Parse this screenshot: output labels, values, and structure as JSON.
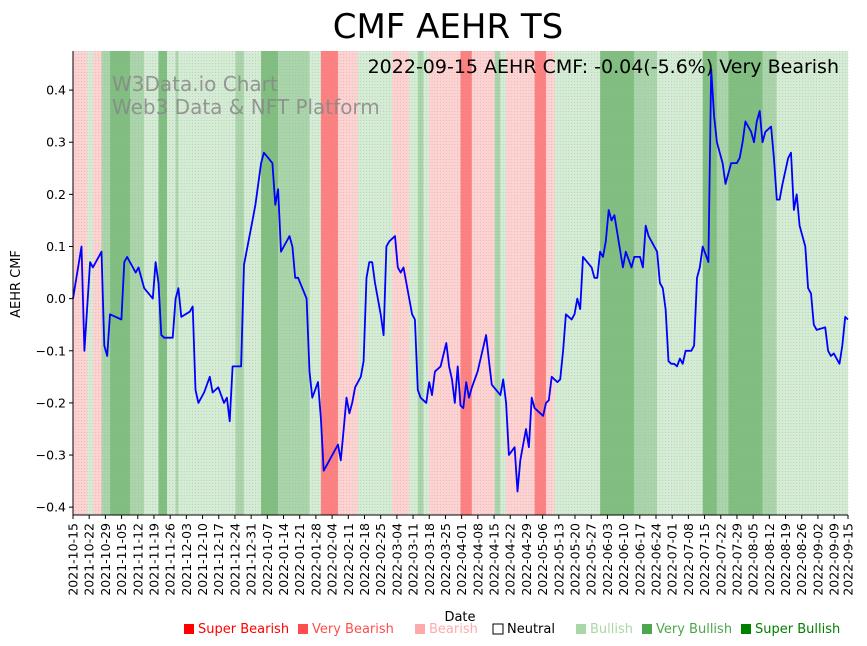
{
  "chart_data": {
    "type": "line",
    "title": "CMF AEHR TS",
    "subtitle": "2022-09-15 AEHR CMF: -0.04(-5.6%) Very Bearish",
    "watermark": [
      "W3Data.io Chart",
      "Web3 Data & NFT Platform"
    ],
    "xlabel": "Date",
    "ylabel": "AEHR CMF",
    "ylim": [
      -0.415,
      0.475
    ],
    "yticks": [
      -0.4,
      -0.3,
      -0.2,
      -0.1,
      0.0,
      0.1,
      0.2,
      0.3,
      0.4
    ],
    "ytick_labels": [
      "−0.4",
      "−0.3",
      "−0.2",
      "−0.1",
      "0.0",
      "0.1",
      "0.2",
      "0.3",
      "0.4"
    ],
    "x_start": "2021-10-15",
    "x_end": "2022-09-15",
    "xtick_labels": [
      "2021-10-15",
      "2021-10-22",
      "2021-10-29",
      "2021-11-05",
      "2021-11-12",
      "2021-11-19",
      "2021-11-26",
      "2021-12-03",
      "2021-12-10",
      "2021-12-17",
      "2021-12-24",
      "2021-12-31",
      "2022-01-07",
      "2022-01-14",
      "2022-01-21",
      "2022-01-28",
      "2022-02-04",
      "2022-02-11",
      "2022-02-18",
      "2022-02-25",
      "2022-03-04",
      "2022-03-11",
      "2022-03-18",
      "2022-03-25",
      "2022-04-01",
      "2022-04-08",
      "2022-04-15",
      "2022-04-22",
      "2022-04-29",
      "2022-05-06",
      "2022-05-13",
      "2022-05-20",
      "2022-05-27",
      "2022-06-03",
      "2022-06-10",
      "2022-06-17",
      "2022-06-24",
      "2022-07-01",
      "2022-07-08",
      "2022-07-15",
      "2022-07-22",
      "2022-07-29",
      "2022-08-05",
      "2022-08-12",
      "2022-08-19",
      "2022-08-26",
      "2022-09-02",
      "2022-09-09",
      "2022-09-15"
    ],
    "series": [
      {
        "name": "AEHR CMF",
        "color": "#0000ff",
        "points": [
          [
            0,
            0.0
          ],
          [
            3,
            0.1
          ],
          [
            4,
            -0.1
          ],
          [
            6,
            0.07
          ],
          [
            7,
            0.06
          ],
          [
            10,
            0.09
          ],
          [
            11,
            -0.09
          ],
          [
            12,
            -0.11
          ],
          [
            13,
            -0.03
          ],
          [
            17,
            -0.04
          ],
          [
            18,
            0.07
          ],
          [
            19,
            0.08
          ],
          [
            22,
            0.05
          ],
          [
            23,
            0.06
          ],
          [
            25,
            0.02
          ],
          [
            28,
            0.0
          ],
          [
            29,
            0.07
          ],
          [
            30,
            0.03
          ],
          [
            31,
            -0.07
          ],
          [
            32,
            -0.075
          ],
          [
            35,
            -0.075
          ],
          [
            36,
            0.0
          ],
          [
            37,
            0.02
          ],
          [
            38,
            -0.035
          ],
          [
            41,
            -0.025
          ],
          [
            42,
            -0.015
          ],
          [
            43,
            -0.175
          ],
          [
            44,
            -0.2
          ],
          [
            46,
            -0.18
          ],
          [
            48,
            -0.15
          ],
          [
            49,
            -0.18
          ],
          [
            51,
            -0.17
          ],
          [
            53,
            -0.2
          ],
          [
            54,
            -0.19
          ],
          [
            55,
            -0.235
          ],
          [
            56,
            -0.13
          ],
          [
            59,
            -0.13
          ],
          [
            60,
            0.065
          ],
          [
            63,
            0.15
          ],
          [
            64,
            0.18
          ],
          [
            66,
            0.26
          ],
          [
            67,
            0.28
          ],
          [
            70,
            0.26
          ],
          [
            71,
            0.18
          ],
          [
            72,
            0.21
          ],
          [
            73,
            0.09
          ],
          [
            74,
            0.1
          ],
          [
            76,
            0.12
          ],
          [
            77,
            0.1
          ],
          [
            78,
            0.04
          ],
          [
            79,
            0.04
          ],
          [
            82,
            0.0
          ],
          [
            83,
            -0.14
          ],
          [
            84,
            -0.19
          ],
          [
            86,
            -0.16
          ],
          [
            87,
            -0.23
          ],
          [
            88,
            -0.33
          ],
          [
            89,
            -0.32
          ],
          [
            90,
            -0.31
          ],
          [
            93,
            -0.28
          ],
          [
            94,
            -0.31
          ],
          [
            95,
            -0.25
          ],
          [
            96,
            -0.19
          ],
          [
            97,
            -0.22
          ],
          [
            98,
            -0.2
          ],
          [
            99,
            -0.17
          ],
          [
            101,
            -0.15
          ],
          [
            102,
            -0.12
          ],
          [
            103,
            0.04
          ],
          [
            104,
            0.07
          ],
          [
            105,
            0.07
          ],
          [
            106,
            0.03
          ],
          [
            108,
            -0.03
          ],
          [
            109,
            -0.07
          ],
          [
            110,
            0.1
          ],
          [
            111,
            0.11
          ],
          [
            113,
            0.12
          ],
          [
            114,
            0.06
          ],
          [
            115,
            0.05
          ],
          [
            116,
            0.06
          ],
          [
            119,
            -0.03
          ],
          [
            120,
            -0.04
          ],
          [
            121,
            -0.175
          ],
          [
            122,
            -0.19
          ],
          [
            124,
            -0.2
          ],
          [
            125,
            -0.16
          ],
          [
            126,
            -0.185
          ],
          [
            127,
            -0.14
          ],
          [
            129,
            -0.13
          ],
          [
            131,
            -0.085
          ],
          [
            132,
            -0.13
          ],
          [
            133,
            -0.155
          ],
          [
            134,
            -0.2
          ],
          [
            135,
            -0.13
          ],
          [
            136,
            -0.205
          ],
          [
            137,
            -0.21
          ],
          [
            138,
            -0.16
          ],
          [
            139,
            -0.19
          ],
          [
            140,
            -0.17
          ],
          [
            142,
            -0.14
          ],
          [
            145,
            -0.07
          ],
          [
            146,
            -0.12
          ],
          [
            147,
            -0.165
          ],
          [
            150,
            -0.185
          ],
          [
            151,
            -0.155
          ],
          [
            152,
            -0.2
          ],
          [
            153,
            -0.3
          ],
          [
            155,
            -0.285
          ],
          [
            156,
            -0.37
          ],
          [
            157,
            -0.31
          ],
          [
            159,
            -0.25
          ],
          [
            160,
            -0.285
          ],
          [
            161,
            -0.19
          ],
          [
            162,
            -0.21
          ],
          [
            164,
            -0.22
          ],
          [
            165,
            -0.225
          ],
          [
            166,
            -0.2
          ],
          [
            167,
            -0.195
          ],
          [
            168,
            -0.15
          ],
          [
            170,
            -0.16
          ],
          [
            171,
            -0.155
          ],
          [
            172,
            -0.1
          ],
          [
            173,
            -0.03
          ],
          [
            175,
            -0.04
          ],
          [
            176,
            -0.03
          ],
          [
            177,
            0.0
          ],
          [
            178,
            -0.02
          ],
          [
            179,
            0.08
          ],
          [
            182,
            0.06
          ],
          [
            183,
            0.04
          ],
          [
            184,
            0.04
          ],
          [
            185,
            0.09
          ],
          [
            186,
            0.08
          ],
          [
            187,
            0.11
          ],
          [
            188,
            0.17
          ],
          [
            189,
            0.15
          ],
          [
            190,
            0.16
          ],
          [
            193,
            0.06
          ],
          [
            194,
            0.09
          ],
          [
            196,
            0.06
          ],
          [
            197,
            0.08
          ],
          [
            199,
            0.08
          ],
          [
            200,
            0.06
          ],
          [
            201,
            0.14
          ],
          [
            202,
            0.12
          ],
          [
            205,
            0.09
          ],
          [
            206,
            0.03
          ],
          [
            207,
            0.02
          ],
          [
            208,
            -0.02
          ],
          [
            209,
            -0.12
          ],
          [
            210,
            -0.125
          ],
          [
            211,
            -0.125
          ],
          [
            212,
            -0.13
          ],
          [
            213,
            -0.115
          ],
          [
            214,
            -0.125
          ],
          [
            215,
            -0.1
          ],
          [
            217,
            -0.1
          ],
          [
            218,
            -0.09
          ],
          [
            219,
            0.04
          ],
          [
            220,
            0.06
          ],
          [
            221,
            0.1
          ],
          [
            223,
            0.07
          ],
          [
            224,
            0.44
          ],
          [
            225,
            0.35
          ],
          [
            226,
            0.3
          ],
          [
            228,
            0.26
          ],
          [
            229,
            0.22
          ],
          [
            231,
            0.26
          ],
          [
            233,
            0.26
          ],
          [
            234,
            0.27
          ],
          [
            235,
            0.3
          ],
          [
            236,
            0.34
          ],
          [
            238,
            0.32
          ],
          [
            239,
            0.3
          ],
          [
            240,
            0.34
          ],
          [
            241,
            0.36
          ],
          [
            242,
            0.3
          ],
          [
            243,
            0.32
          ],
          [
            245,
            0.33
          ],
          [
            246,
            0.27
          ],
          [
            247,
            0.19
          ],
          [
            248,
            0.19
          ],
          [
            249,
            0.22
          ],
          [
            251,
            0.27
          ],
          [
            252,
            0.28
          ],
          [
            253,
            0.17
          ],
          [
            254,
            0.2
          ],
          [
            255,
            0.14
          ],
          [
            257,
            0.1
          ],
          [
            258,
            0.02
          ],
          [
            259,
            0.01
          ],
          [
            260,
            -0.05
          ],
          [
            261,
            -0.06
          ],
          [
            264,
            -0.055
          ],
          [
            265,
            -0.1
          ],
          [
            266,
            -0.11
          ],
          [
            267,
            -0.105
          ],
          [
            269,
            -0.125
          ],
          [
            270,
            -0.09
          ],
          [
            271,
            -0.035
          ],
          [
            272,
            -0.04
          ]
        ]
      }
    ],
    "bands": [
      {
        "from": 0,
        "to": 5,
        "level": "Bearish"
      },
      {
        "from": 5,
        "to": 7,
        "level": "Neutral"
      },
      {
        "from": 7,
        "to": 10,
        "level": "Bearish"
      },
      {
        "from": 10,
        "to": 13,
        "level": "Bullish"
      },
      {
        "from": 13,
        "to": 20,
        "level": "Very Bullish"
      },
      {
        "from": 20,
        "to": 25,
        "level": "Bullish"
      },
      {
        "from": 25,
        "to": 30,
        "level": "Neutral"
      },
      {
        "from": 30,
        "to": 33,
        "level": "Very Bullish"
      },
      {
        "from": 33,
        "to": 36,
        "level": "Neutral"
      },
      {
        "from": 36,
        "to": 37,
        "level": "Bullish"
      },
      {
        "from": 37,
        "to": 57,
        "level": "Neutral"
      },
      {
        "from": 57,
        "to": 60,
        "level": "Bullish"
      },
      {
        "from": 60,
        "to": 66,
        "level": "Neutral"
      },
      {
        "from": 66,
        "to": 72,
        "level": "Very Bullish"
      },
      {
        "from": 72,
        "to": 83,
        "level": "Bullish"
      },
      {
        "from": 83,
        "to": 87,
        "level": "Neutral"
      },
      {
        "from": 87,
        "to": 93,
        "level": "Very Bearish"
      },
      {
        "from": 93,
        "to": 100,
        "level": "Bearish"
      },
      {
        "from": 100,
        "to": 112,
        "level": "Neutral"
      },
      {
        "from": 112,
        "to": 118,
        "level": "Bearish"
      },
      {
        "from": 118,
        "to": 121,
        "level": "Neutral"
      },
      {
        "from": 121,
        "to": 123,
        "level": "Bullish"
      },
      {
        "from": 123,
        "to": 125,
        "level": "Neutral"
      },
      {
        "from": 125,
        "to": 136,
        "level": "Bearish"
      },
      {
        "from": 136,
        "to": 140,
        "level": "Very Bearish"
      },
      {
        "from": 140,
        "to": 148,
        "level": "Bearish"
      },
      {
        "from": 148,
        "to": 150,
        "level": "Bullish"
      },
      {
        "from": 150,
        "to": 152,
        "level": "Neutral"
      },
      {
        "from": 152,
        "to": 162,
        "level": "Bearish"
      },
      {
        "from": 162,
        "to": 166,
        "level": "Very Bearish"
      },
      {
        "from": 166,
        "to": 169,
        "level": "Bearish"
      },
      {
        "from": 169,
        "to": 185,
        "level": "Neutral"
      },
      {
        "from": 185,
        "to": 197,
        "level": "Very Bullish"
      },
      {
        "from": 197,
        "to": 205,
        "level": "Bullish"
      },
      {
        "from": 205,
        "to": 221,
        "level": "Neutral"
      },
      {
        "from": 221,
        "to": 226,
        "level": "Very Bullish"
      },
      {
        "from": 226,
        "to": 230,
        "level": "Bullish"
      },
      {
        "from": 230,
        "to": 242,
        "level": "Very Bullish"
      },
      {
        "from": 242,
        "to": 247,
        "level": "Bullish"
      },
      {
        "from": 247,
        "to": 272,
        "level": "Neutral"
      }
    ],
    "legend": [
      {
        "label": "Super Bearish",
        "color": "#ff0000",
        "text_color": "#ff0000"
      },
      {
        "label": "Very Bearish",
        "color": "#ff4d4d",
        "text_color": "#ff4d4d"
      },
      {
        "label": "Bearish",
        "color": "#ffaaaa",
        "text_color": "#ffaaaa"
      },
      {
        "label": "Neutral",
        "color": "#ffffff",
        "text_color": "#000000"
      },
      {
        "label": "Bullish",
        "color": "#a8d8a8",
        "text_color": "#a8d8a8"
      },
      {
        "label": "Very Bullish",
        "color": "#4ca64c",
        "text_color": "#4ca64c"
      },
      {
        "label": "Super Bullish",
        "color": "#008000",
        "text_color": "#008000"
      }
    ],
    "band_colors": {
      "Very Bearish": "#ff8080",
      "Bearish": "#ffd2d2",
      "Neutral": "#d4ecd4",
      "Bullish": "#aad5aa",
      "Very Bullish": "#80bf80"
    },
    "legend_position": "bottom-right",
    "grid": "vertical-dotted"
  }
}
